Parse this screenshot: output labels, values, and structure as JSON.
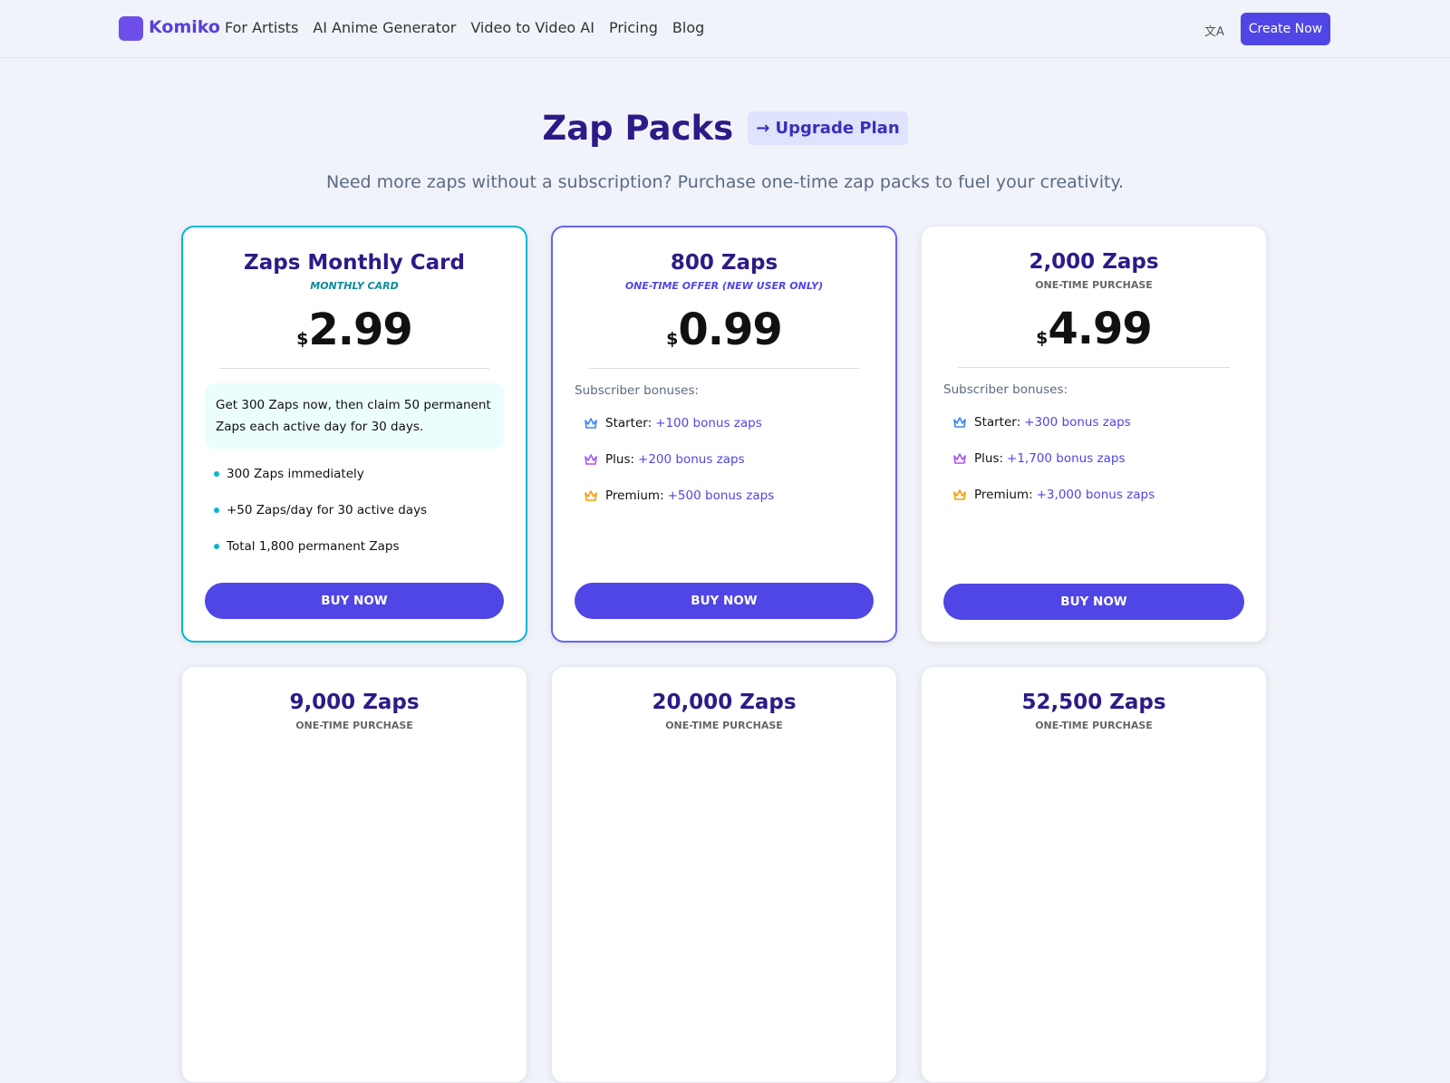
{
  "nav": {
    "brand": "Komiko",
    "links": [
      "For Artists",
      "AI Anime Generator",
      "Video to Video AI",
      "Pricing",
      "Blog"
    ],
    "cta": "Create Now"
  },
  "header": {
    "title": "Zap Packs",
    "upgrade": "Upgrade Plan",
    "subtitle": "Need more zaps without a subscription? Purchase one-time zap packs to fuel your creativity."
  },
  "cards": [
    {
      "title": "Zaps Monthly Card",
      "tag": "MONTHLY CARD",
      "currency": "$",
      "price": "2.99",
      "note": "Get 300 Zaps now, then claim 50 permanent Zaps each active day for 30 days.",
      "bullets": [
        "300 Zaps immediately",
        "+50 Zaps/day for 30 active days",
        "Total 1,800 permanent Zaps"
      ],
      "button": "BUY NOW"
    },
    {
      "title": "800 Zaps",
      "tag": "ONE-TIME OFFER (NEW USER ONLY)",
      "currency": "$",
      "price": "0.99",
      "bonus_label": "Subscriber bonuses:",
      "bonuses": [
        {
          "tier": "Starter:",
          "amount": "+100 bonus zaps"
        },
        {
          "tier": "Plus:",
          "amount": "+200 bonus zaps"
        },
        {
          "tier": "Premium:",
          "amount": "+500 bonus zaps"
        }
      ],
      "button": "BUY NOW"
    },
    {
      "title": "2,000 Zaps",
      "tag": "ONE-TIME PURCHASE",
      "currency": "$",
      "price": "4.99",
      "bonus_label": "Subscriber bonuses:",
      "bonuses": [
        {
          "tier": "Starter:",
          "amount": "+300 bonus zaps"
        },
        {
          "tier": "Plus:",
          "amount": "+1,700 bonus zaps"
        },
        {
          "tier": "Premium:",
          "amount": "+3,000 bonus zaps"
        }
      ],
      "button": "BUY NOW"
    }
  ],
  "more_cards": [
    {
      "title": "9,000 Zaps",
      "tag": "ONE-TIME PURCHASE"
    },
    {
      "title": "20,000 Zaps",
      "tag": "ONE-TIME PURCHASE"
    },
    {
      "title": "52,500 Zaps",
      "tag": "ONE-TIME PURCHASE"
    }
  ]
}
